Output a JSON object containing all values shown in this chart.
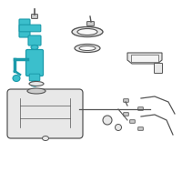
{
  "bg_color": "#ffffff",
  "teal": "#3bbfcc",
  "dark_teal": "#1a9aaa",
  "light_gray": "#e8e8e8",
  "mid_gray": "#cccccc",
  "dark_gray": "#555555",
  "line_color": "#555555",
  "figsize": [
    2.0,
    2.0
  ],
  "dpi": 100
}
